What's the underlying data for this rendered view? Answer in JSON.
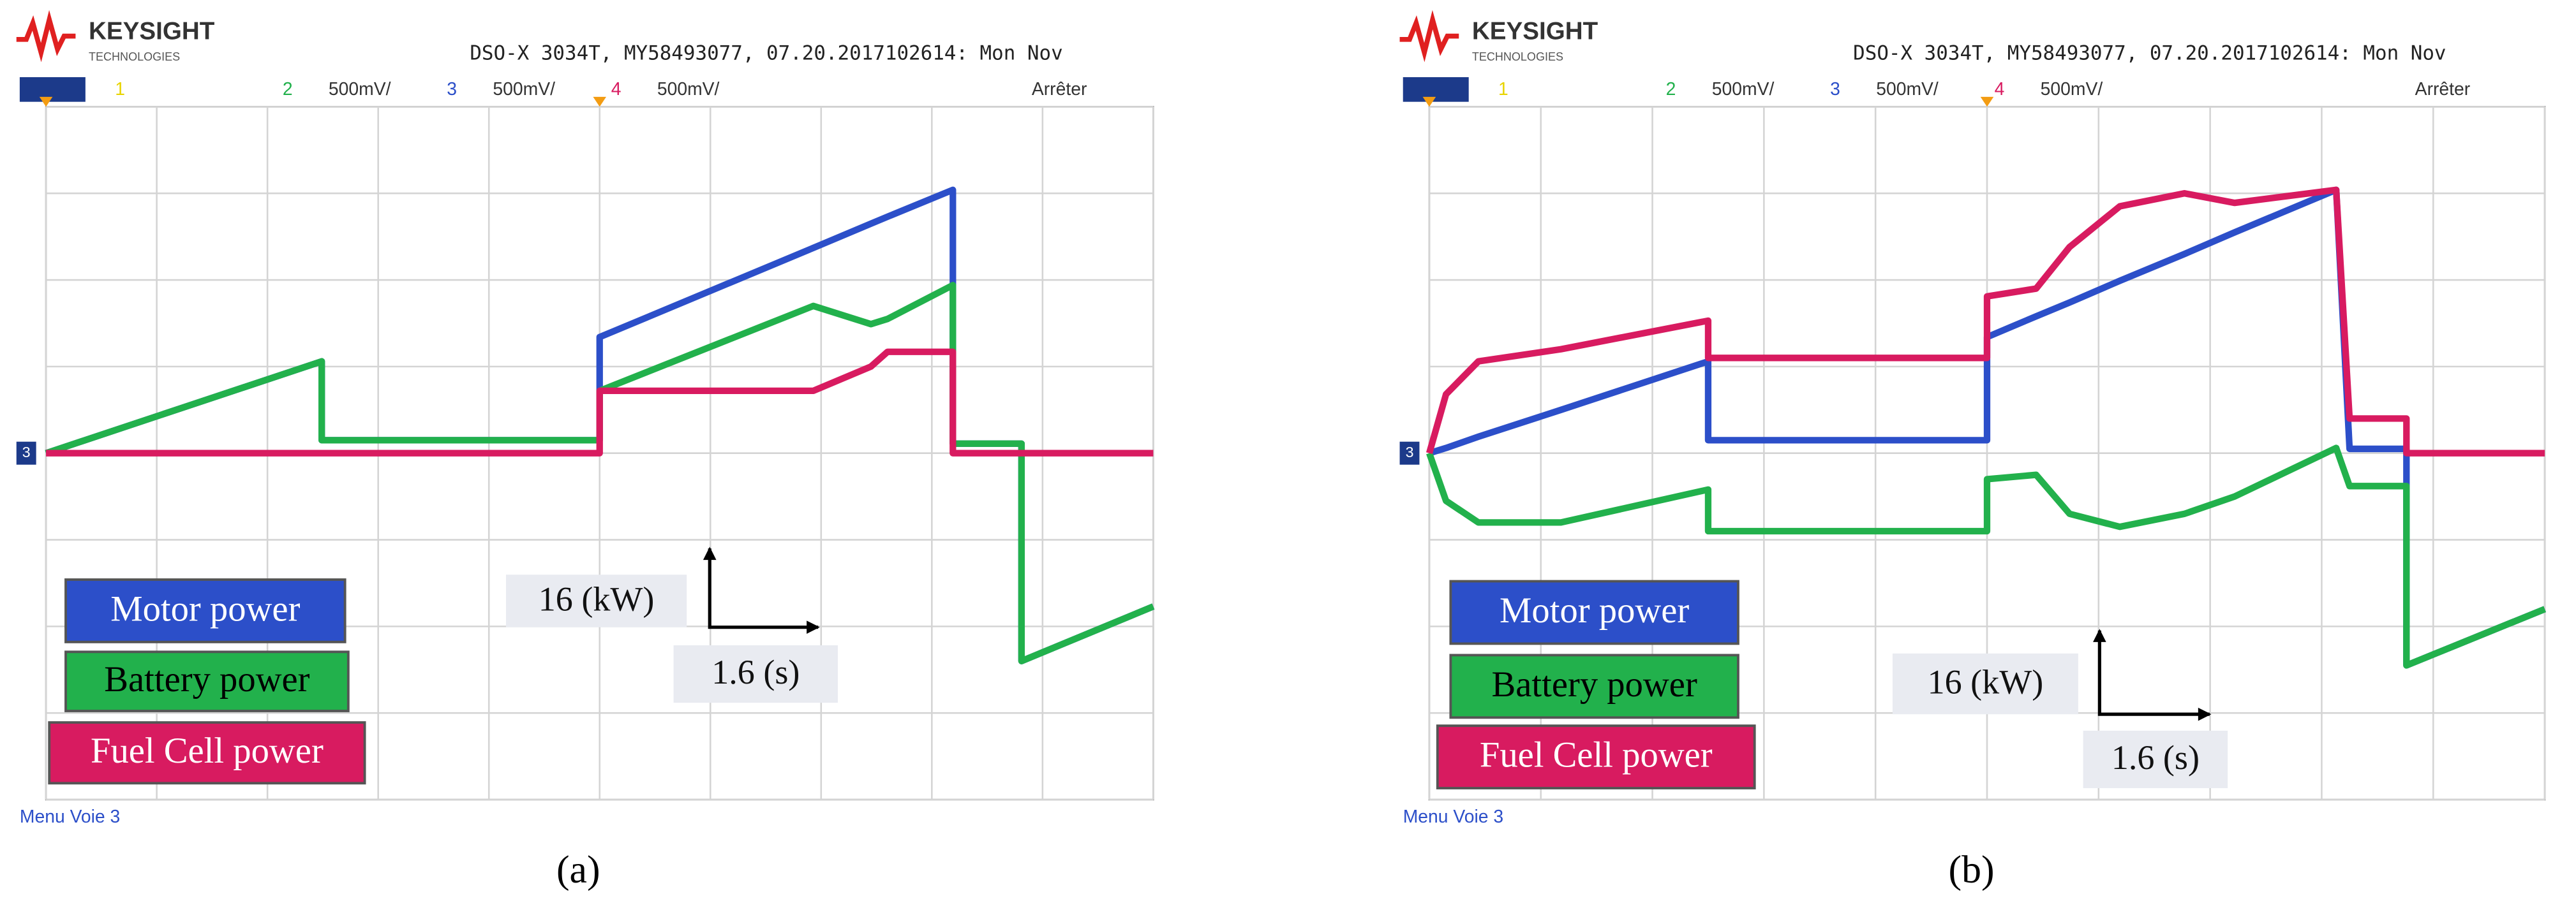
{
  "chart_data": [
    {
      "type": "line",
      "brand": "KEYSIGHT",
      "brand_sub": "TECHNOLOGIES",
      "info": "DSO-X 3034T, MY58493077, 07.20.2017102614: Mon Nov",
      "channels": [
        {
          "label": "1",
          "color": "#e8d400"
        },
        {
          "label": "2",
          "scale": "500mV/",
          "color": "#22b14c"
        },
        {
          "label": "3",
          "scale": "500mV/",
          "color": "#2c4fc9"
        },
        {
          "label": "4",
          "scale": "500mV/",
          "color": "#d81b60"
        }
      ],
      "status": "Arrêter",
      "ground_marker": "3",
      "menu": "Menu Voie 3",
      "y_scale": "16 (kW)",
      "x_scale": "1.6 (s)",
      "caption": "(a)",
      "xlim": [
        0,
        10
      ],
      "ylim": [
        -4,
        4
      ],
      "xticks": [
        0,
        1,
        2,
        3,
        4,
        5,
        6,
        7,
        8,
        9,
        10
      ],
      "yticks": [
        -4,
        -3,
        -2,
        -1,
        0,
        1,
        2,
        3,
        4
      ],
      "grid": true,
      "x": [
        0,
        2.49,
        2.49,
        5.0,
        5.0,
        6.93,
        7.45,
        7.6,
        8.19,
        8.19,
        8.81,
        8.81,
        10
      ],
      "series": [
        {
          "name": "Motor power",
          "color": "#2c4fc9",
          "values": [
            0,
            1.06,
            0.15,
            0.15,
            1.34,
            2.37,
            2.65,
            2.73,
            3.04,
            0.11,
            0.11,
            -2.4,
            -1.77
          ]
        },
        {
          "name": "Battery power",
          "color": "#22b14c",
          "values": [
            0,
            1.06,
            0.15,
            0.15,
            0.72,
            1.7,
            1.49,
            1.55,
            1.94,
            0.11,
            0.11,
            -2.4,
            -1.77
          ]
        },
        {
          "name": "Fuel Cell power",
          "color": "#d81b60",
          "values": [
            0,
            0,
            0,
            0,
            0.72,
            0.72,
            1.0,
            1.17,
            1.17,
            0,
            0,
            0,
            0
          ]
        }
      ]
    },
    {
      "type": "line",
      "brand": "KEYSIGHT",
      "brand_sub": "TECHNOLOGIES",
      "info": "DSO-X 3034T, MY58493077, 07.20.2017102614: Mon Nov",
      "channels": [
        {
          "label": "1",
          "color": "#e8d400"
        },
        {
          "label": "2",
          "scale": "500mV/",
          "color": "#22b14c"
        },
        {
          "label": "3",
          "scale": "500mV/",
          "color": "#2c4fc9"
        },
        {
          "label": "4",
          "scale": "500mV/",
          "color": "#d81b60"
        }
      ],
      "status": "Arrêter",
      "ground_marker": "3",
      "menu": "Menu Voie 3",
      "y_scale": "16 (kW)",
      "x_scale": "1.6 (s)",
      "caption": "(b)",
      "xlim": [
        0,
        10
      ],
      "ylim": [
        -4,
        4
      ],
      "xticks": [
        0,
        1,
        2,
        3,
        4,
        5,
        6,
        7,
        8,
        9,
        10
      ],
      "yticks": [
        -4,
        -3,
        -2,
        -1,
        0,
        1,
        2,
        3,
        4
      ],
      "grid": true,
      "x": [
        0,
        0.15,
        0.44,
        1.18,
        2.5,
        2.5,
        5.0,
        5.0,
        5.44,
        5.74,
        6.19,
        6.77,
        7.22,
        8.13,
        8.25,
        8.76,
        8.76,
        10
      ],
      "series": [
        {
          "name": "Motor power",
          "color": "#2c4fc9",
          "values": [
            0,
            0.06,
            0.19,
            0.5,
            1.06,
            0.15,
            0.15,
            1.34,
            1.58,
            1.74,
            1.99,
            2.3,
            2.55,
            3.04,
            0.05,
            0.05,
            -2.45,
            -1.8
          ]
        },
        {
          "name": "Battery power",
          "color": "#22b14c",
          "values": [
            0,
            -0.55,
            -0.8,
            -0.8,
            -0.42,
            -0.9,
            -0.9,
            -0.3,
            -0.25,
            -0.7,
            -0.85,
            -0.7,
            -0.5,
            0.06,
            -0.38,
            -0.38,
            -2.45,
            -1.8
          ]
        },
        {
          "name": "Fuel Cell power",
          "color": "#d81b60",
          "values": [
            0,
            0.68,
            1.06,
            1.2,
            1.53,
            1.1,
            1.1,
            1.81,
            1.9,
            2.38,
            2.85,
            3.0,
            2.89,
            3.04,
            0.4,
            0.4,
            0,
            0
          ]
        }
      ]
    }
  ]
}
